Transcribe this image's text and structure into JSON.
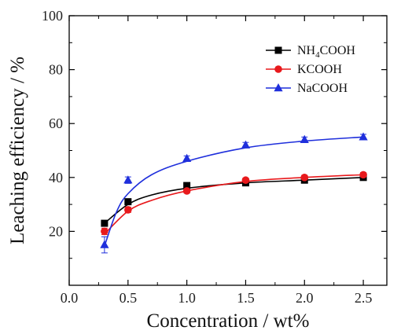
{
  "chart_data": {
    "type": "scatter",
    "title": "",
    "xlabel": "Concentration / wt%",
    "ylabel": "Leaching efficiency / %",
    "xlim": [
      0.0,
      2.7
    ],
    "ylim": [
      0,
      100
    ],
    "xticks": [
      "0.0",
      "0.5",
      "1.0",
      "1.5",
      "2.0",
      "2.5"
    ],
    "yticks": [
      "20",
      "40",
      "60",
      "80",
      "100"
    ],
    "legend_position": "top-right",
    "x": [
      0.3,
      0.5,
      1.0,
      1.5,
      2.0,
      2.5
    ],
    "series": [
      {
        "name_main": "NH",
        "name_sub": "4",
        "name_rest": "COOH",
        "color": "#000000",
        "marker": "square",
        "values": [
          23,
          31,
          37,
          38,
          39,
          40
        ],
        "errors": [
          1.0,
          1.0,
          0.8,
          0.8,
          0.8,
          0.8
        ],
        "fit": [
          [
            0.3,
            23
          ],
          [
            0.5,
            30
          ],
          [
            0.7,
            33.5
          ],
          [
            1.0,
            36
          ],
          [
            1.5,
            38
          ],
          [
            2.0,
            39
          ],
          [
            2.5,
            40
          ]
        ]
      },
      {
        "name_main": "KCOOH",
        "name_sub": "",
        "name_rest": "",
        "color": "#e8191c",
        "marker": "circle",
        "values": [
          20,
          28,
          35,
          39,
          40,
          41
        ],
        "errors": [
          1.2,
          1.0,
          0.8,
          0.8,
          0.8,
          0.8
        ],
        "fit": [
          [
            0.3,
            19
          ],
          [
            0.5,
            27.5
          ],
          [
            0.7,
            31.5
          ],
          [
            1.0,
            35
          ],
          [
            1.5,
            38.5
          ],
          [
            2.0,
            40
          ],
          [
            2.5,
            41
          ]
        ]
      },
      {
        "name_main": "NaCOOH",
        "name_sub": "",
        "name_rest": "",
        "color": "#1f2fdc",
        "marker": "triangle",
        "values": [
          15,
          39,
          47,
          52,
          54,
          55
        ],
        "errors": [
          3.0,
          1.2,
          1.0,
          1.0,
          1.0,
          1.0
        ],
        "fit": [
          [
            0.3,
            14.5
          ],
          [
            0.4,
            27
          ],
          [
            0.5,
            34
          ],
          [
            0.7,
            41
          ],
          [
            1.0,
            46
          ],
          [
            1.5,
            51
          ],
          [
            2.0,
            53.5
          ],
          [
            2.5,
            55
          ]
        ]
      }
    ]
  }
}
